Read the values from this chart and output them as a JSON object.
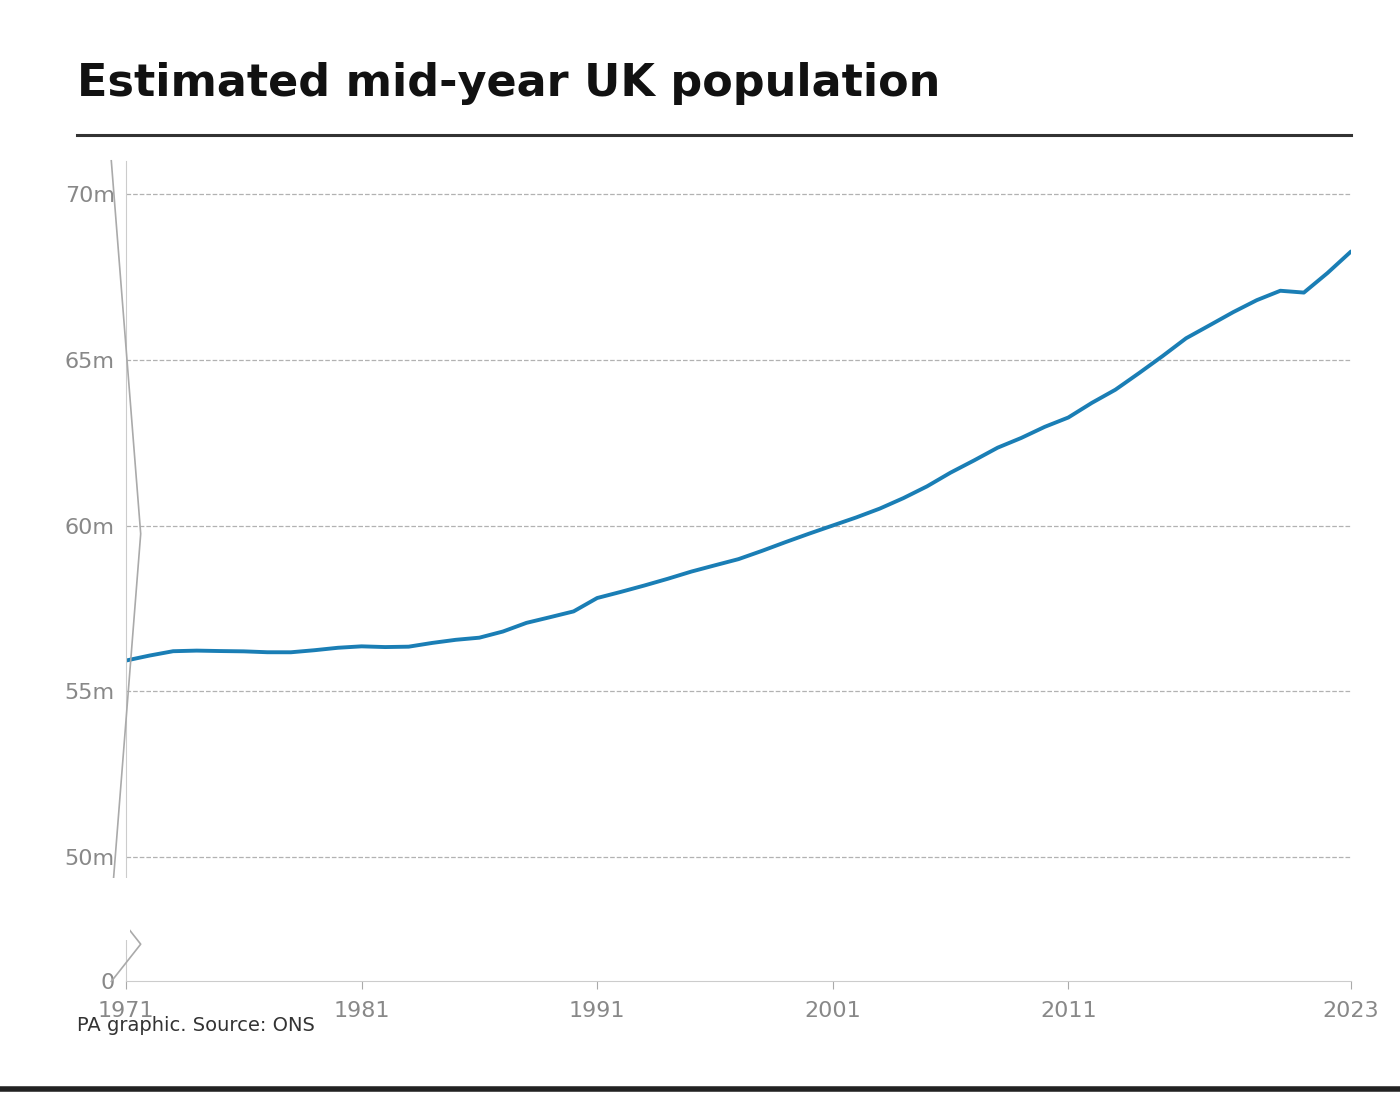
{
  "title": "Estimated mid-year UK population",
  "caption": "PA graphic. Source: ONS",
  "line_color": "#1a7eb5",
  "line_width": 2.8,
  "background_color": "#ffffff",
  "ytick_labels": [
    "0",
    "50m",
    "55m",
    "60m",
    "65m",
    "70m"
  ],
  "ytick_values": [
    0,
    50000000,
    55000000,
    60000000,
    65000000,
    70000000
  ],
  "xtick_labels": [
    "1971",
    "1981",
    "1991",
    "2001",
    "2011",
    "2023"
  ],
  "xtick_values": [
    1971,
    1981,
    1991,
    2001,
    2011,
    2023
  ],
  "ylim": [
    0,
    71000000
  ],
  "xlim": [
    1971,
    2023
  ],
  "years": [
    1971,
    1972,
    1973,
    1974,
    1975,
    1976,
    1977,
    1978,
    1979,
    1980,
    1981,
    1982,
    1983,
    1984,
    1985,
    1986,
    1987,
    1988,
    1989,
    1990,
    1991,
    1992,
    1993,
    1994,
    1995,
    1996,
    1997,
    1998,
    1999,
    2000,
    2001,
    2002,
    2003,
    2004,
    2005,
    2006,
    2007,
    2008,
    2009,
    2010,
    2011,
    2012,
    2013,
    2014,
    2015,
    2016,
    2017,
    2018,
    2019,
    2020,
    2021,
    2022,
    2023
  ],
  "population": [
    55928000,
    56079000,
    56210000,
    56228000,
    56215000,
    56206000,
    56179000,
    56178000,
    56240000,
    56314000,
    56357000,
    56335000,
    56347000,
    56460000,
    56554000,
    56618000,
    56804000,
    57065000,
    57236000,
    57411000,
    57814000,
    57998000,
    58191000,
    58395000,
    58612000,
    58801000,
    58987000,
    59237000,
    59501000,
    59756000,
    60001000,
    60245000,
    60512000,
    60827000,
    61181000,
    61595000,
    61964000,
    62348000,
    62641000,
    62977000,
    63258000,
    63700000,
    64097000,
    64596000,
    65110000,
    65648000,
    66040000,
    66436000,
    66797000,
    67081000,
    67026000,
    67615000,
    68265000
  ],
  "title_fontsize": 32,
  "tick_fontsize": 16,
  "caption_fontsize": 14
}
